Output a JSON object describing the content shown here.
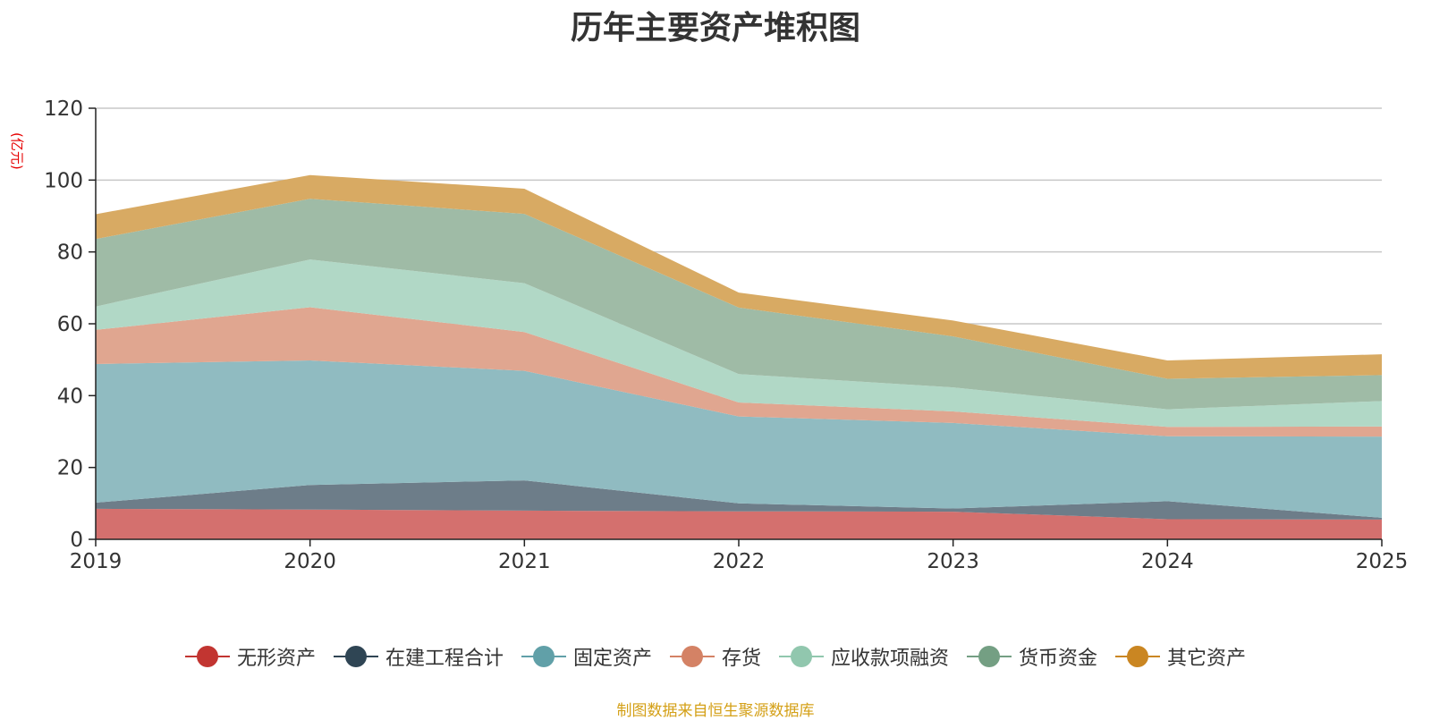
{
  "page": {
    "title": "历年主要资产堆积图",
    "unit": "(亿元)",
    "source_note": "制图数据来自恒生聚源数据库"
  },
  "chart_data": {
    "type": "area",
    "stacked": true,
    "title": "历年主要资产堆积图",
    "ylabel": "(亿元)",
    "xlabel": "",
    "ylim": [
      0,
      120
    ],
    "yticks": [
      0,
      20,
      40,
      60,
      80,
      100,
      120
    ],
    "grid": true,
    "legend_position": "bottom",
    "categories": [
      "2019",
      "2020",
      "2021",
      "2022",
      "2023",
      "2024",
      "2025"
    ],
    "series": [
      {
        "name": "无形资产",
        "color": "#c23531",
        "area_color": "#d4706e",
        "values": [
          8.5,
          8.3,
          8.0,
          7.8,
          7.7,
          5.6,
          5.5
        ]
      },
      {
        "name": "在建工程合计",
        "color": "#2f4554",
        "area_color": "#6d7d89",
        "values": [
          1.7,
          6.8,
          8.4,
          2.2,
          0.9,
          5.0,
          0.5
        ]
      },
      {
        "name": "固定资产",
        "color": "#61a0a8",
        "area_color": "#90bbc1",
        "values": [
          38.6,
          34.7,
          30.5,
          24.2,
          23.8,
          18.1,
          22.6
        ]
      },
      {
        "name": "存货",
        "color": "#d48265",
        "area_color": "#e0a690",
        "values": [
          9.5,
          14.8,
          10.8,
          3.9,
          3.2,
          2.6,
          2.8
        ]
      },
      {
        "name": "应收款项融资",
        "color": "#91c7ae",
        "area_color": "#b1d8c6",
        "values": [
          6.5,
          13.3,
          13.6,
          7.9,
          6.7,
          4.9,
          7.1
        ]
      },
      {
        "name": "货币资金",
        "color": "#749f83",
        "area_color": "#9fbba6",
        "values": [
          18.8,
          16.9,
          19.3,
          18.5,
          14.2,
          8.5,
          7.2
        ]
      },
      {
        "name": "其它资产",
        "color": "#ca8622",
        "area_color": "#d8aa63",
        "values": [
          6.9,
          6.6,
          7.0,
          4.2,
          4.4,
          5.1,
          5.8
        ]
      }
    ]
  }
}
